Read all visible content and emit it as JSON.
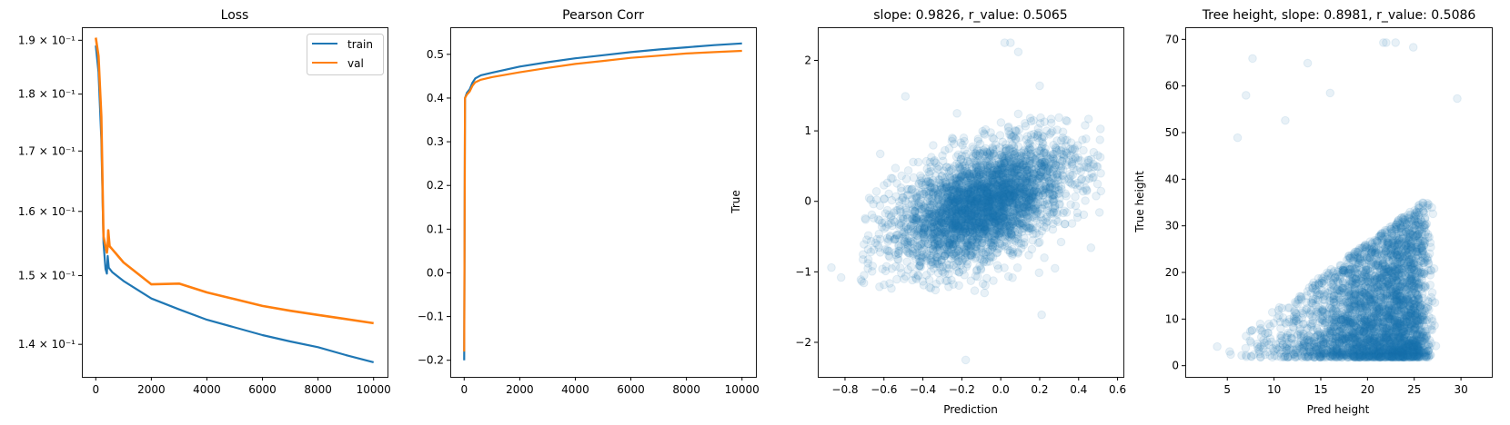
{
  "colors": {
    "train": "#1f77b4",
    "val": "#ff7f0e",
    "scatter": "#1f77b4"
  },
  "chart_data": [
    {
      "type": "line",
      "title": "Loss",
      "xlabel": "",
      "ylabel": "",
      "yscale": "log",
      "xlim": [
        -500,
        10500
      ],
      "ylim": [
        0.1355,
        0.1925
      ],
      "xticks": [
        0,
        2000,
        4000,
        6000,
        8000,
        10000
      ],
      "xtick_labels": [
        "0",
        "2000",
        "4000",
        "6000",
        "8000",
        "10000"
      ],
      "yticks": [
        0.14,
        0.15,
        0.16,
        0.17,
        0.18,
        0.19
      ],
      "ytick_labels": [
        "1.4 × 10⁻¹",
        "1.5 × 10⁻¹",
        "1.6 × 10⁻¹",
        "1.7 × 10⁻¹",
        "1.8 × 10⁻¹",
        "1.9 × 10⁻¹"
      ],
      "legend": {
        "placement": "top-right",
        "entries": [
          "train",
          "val"
        ]
      },
      "grid": false,
      "series": [
        {
          "name": "train",
          "x": [
            0,
            100,
            200,
            280,
            350,
            400,
            430,
            470,
            600,
            1000,
            2000,
            3000,
            4000,
            5000,
            6000,
            7000,
            8000,
            9000,
            10000
          ],
          "values": [
            0.189,
            0.184,
            0.172,
            0.155,
            0.151,
            0.1503,
            0.153,
            0.1512,
            0.1505,
            0.1492,
            0.1466,
            0.145,
            0.1435,
            0.1424,
            0.1413,
            0.1404,
            0.1396,
            0.1385,
            0.1375
          ]
        },
        {
          "name": "val",
          "x": [
            0,
            100,
            200,
            280,
            350,
            400,
            430,
            450,
            500,
            600,
            1000,
            2000,
            3000,
            4000,
            5000,
            6000,
            7000,
            8000,
            9000,
            10000
          ],
          "values": [
            0.1905,
            0.187,
            0.176,
            0.156,
            0.1545,
            0.1535,
            0.1545,
            0.157,
            0.1545,
            0.154,
            0.152,
            0.1487,
            0.1488,
            0.1475,
            0.1465,
            0.1455,
            0.1448,
            0.1442,
            0.1436,
            0.143
          ]
        }
      ]
    },
    {
      "type": "line",
      "title": "Pearson Corr",
      "xlabel": "",
      "ylabel": "",
      "xlim": [
        -500,
        10500
      ],
      "ylim": [
        -0.238,
        0.562
      ],
      "xticks": [
        0,
        2000,
        4000,
        6000,
        8000,
        10000
      ],
      "xtick_labels": [
        "0",
        "2000",
        "4000",
        "6000",
        "8000",
        "10000"
      ],
      "yticks": [
        -0.2,
        -0.1,
        0.0,
        0.1,
        0.2,
        0.3,
        0.4,
        0.5
      ],
      "ytick_labels": [
        "−0.2",
        "−0.1",
        "0.0",
        "0.1",
        "0.2",
        "0.3",
        "0.4",
        "0.5"
      ],
      "grid": false,
      "series": [
        {
          "name": "train",
          "x": [
            0,
            30,
            100,
            200,
            300,
            400,
            600,
            1000,
            2000,
            3000,
            4000,
            5000,
            6000,
            7000,
            8000,
            9000,
            10000
          ],
          "values": [
            -0.2,
            0.4,
            0.412,
            0.42,
            0.435,
            0.445,
            0.452,
            0.458,
            0.472,
            0.482,
            0.491,
            0.498,
            0.505,
            0.511,
            0.516,
            0.521,
            0.525
          ]
        },
        {
          "name": "val",
          "x": [
            0,
            30,
            100,
            200,
            300,
            400,
            600,
            1000,
            2000,
            3000,
            4000,
            5000,
            6000,
            7000,
            8000,
            9000,
            10000
          ],
          "values": [
            -0.18,
            0.4,
            0.408,
            0.415,
            0.428,
            0.436,
            0.442,
            0.448,
            0.459,
            0.469,
            0.478,
            0.485,
            0.492,
            0.497,
            0.502,
            0.505,
            0.508
          ]
        }
      ]
    },
    {
      "type": "scatter",
      "title": "slope: 0.9826, r_value: 0.5065",
      "xlabel": "Prediction",
      "ylabel": "True",
      "slope": 0.9826,
      "r_value": 0.5065,
      "xlim": [
        -0.94,
        0.63
      ],
      "ylim": [
        -2.49,
        2.47
      ],
      "xticks": [
        -0.8,
        -0.6,
        -0.4,
        -0.2,
        0.0,
        0.2,
        0.4,
        0.6
      ],
      "xtick_labels": [
        "−0.8",
        "−0.6",
        "−0.4",
        "−0.2",
        "0.0",
        "0.2",
        "0.4",
        "0.6"
      ],
      "yticks": [
        -2,
        -1,
        0,
        1,
        2
      ],
      "ytick_labels": [
        "−2",
        "−1",
        "0",
        "1",
        "2"
      ],
      "alpha": 0.1,
      "outliers": [
        [
          0.02,
          2.25
        ],
        [
          0.05,
          2.25
        ],
        [
          0.09,
          2.12
        ],
        [
          -0.18,
          -2.25
        ],
        [
          0.21,
          -1.61
        ],
        [
          -0.87,
          -0.94
        ],
        [
          -0.82,
          -1.08
        ],
        [
          0.2,
          1.64
        ],
        [
          -0.49,
          1.49
        ]
      ]
    },
    {
      "type": "scatter",
      "title": "Tree height, slope: 0.8981, r_value: 0.5086",
      "xlabel": "Pred height",
      "ylabel": "True height",
      "slope": 0.8981,
      "r_value": 0.5086,
      "xlim": [
        0.5,
        33.3
      ],
      "ylim": [
        -2.4,
        72.6
      ],
      "xticks": [
        5,
        10,
        15,
        20,
        25,
        30
      ],
      "xtick_labels": [
        "5",
        "10",
        "15",
        "20",
        "25",
        "30"
      ],
      "yticks": [
        0,
        10,
        20,
        30,
        40,
        50,
        60,
        70
      ],
      "ytick_labels": [
        "0",
        "10",
        "20",
        "30",
        "40",
        "50",
        "60",
        "70"
      ],
      "alpha": 0.1,
      "outliers": [
        [
          21.7,
          69.3
        ],
        [
          22.0,
          69.3
        ],
        [
          23.0,
          69.3
        ],
        [
          24.9,
          68.3
        ],
        [
          7.7,
          65.9
        ],
        [
          13.6,
          64.9
        ],
        [
          7.0,
          58.0
        ],
        [
          29.6,
          57.3
        ],
        [
          16.0,
          58.5
        ],
        [
          11.2,
          52.6
        ],
        [
          6.1,
          48.9
        ]
      ]
    }
  ]
}
